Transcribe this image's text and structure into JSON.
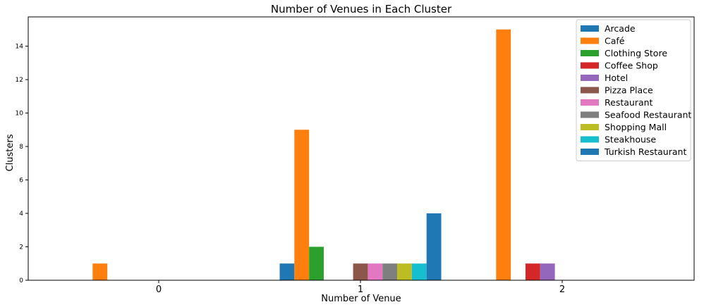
{
  "chart_data": {
    "type": "bar",
    "title": "Number of Venues in Each Cluster",
    "xlabel": "Number of Venue",
    "ylabel": "Clusters",
    "categories": [
      "0",
      "1",
      "2"
    ],
    "ylim": [
      0,
      15.75
    ],
    "yticks": [
      0,
      2,
      4,
      6,
      8,
      10,
      12,
      14
    ],
    "grid": false,
    "legend_position": "top-right",
    "series": [
      {
        "name": "Arcade",
        "color": "#1f77b4",
        "values": [
          0,
          1,
          0
        ]
      },
      {
        "name": "Café",
        "color": "#ff7f0e",
        "values": [
          1,
          9,
          15
        ]
      },
      {
        "name": "Clothing Store",
        "color": "#2ca02c",
        "values": [
          0,
          2,
          0
        ]
      },
      {
        "name": "Coffee Shop",
        "color": "#d62728",
        "values": [
          0,
          0,
          1
        ]
      },
      {
        "name": "Hotel",
        "color": "#9467bd",
        "values": [
          0,
          0,
          1
        ]
      },
      {
        "name": "Pizza Place",
        "color": "#8c564b",
        "values": [
          0,
          1,
          0
        ]
      },
      {
        "name": "Restaurant",
        "color": "#e377c2",
        "values": [
          0,
          1,
          0
        ]
      },
      {
        "name": "Seafood Restaurant",
        "color": "#7f7f7f",
        "values": [
          0,
          1,
          0
        ]
      },
      {
        "name": "Shopping Mall",
        "color": "#bcbd22",
        "values": [
          0,
          1,
          0
        ]
      },
      {
        "name": "Steakhouse",
        "color": "#17becf",
        "values": [
          0,
          1,
          0
        ]
      },
      {
        "name": "Turkish Restaurant",
        "color": "#1f77b4",
        "values": [
          0,
          4,
          0
        ]
      }
    ]
  }
}
